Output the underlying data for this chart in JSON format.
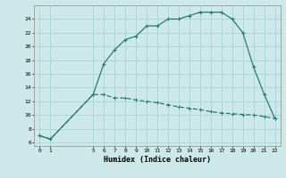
{
  "xlabel": "Humidex (Indice chaleur)",
  "background_color": "#cce8e8",
  "grid_color": "#aad4d4",
  "line_color": "#2d7a6e",
  "line1_x": [
    0,
    1,
    5,
    6,
    7,
    8,
    9,
    10,
    11,
    12,
    13,
    14,
    15,
    16,
    17,
    18,
    19,
    20,
    21,
    22
  ],
  "line1_y": [
    7.0,
    6.5,
    13.0,
    17.5,
    19.5,
    21.0,
    21.5,
    23.0,
    23.0,
    24.0,
    24.0,
    24.5,
    25.0,
    25.0,
    25.0,
    24.0,
    22.0,
    17.0,
    13.0,
    9.5
  ],
  "line2_x": [
    0,
    1,
    5,
    6,
    7,
    8,
    9,
    10,
    11,
    12,
    13,
    14,
    15,
    16,
    17,
    18,
    19,
    20,
    21,
    22
  ],
  "line2_y": [
    7.0,
    6.5,
    13.0,
    13.0,
    12.5,
    12.5,
    12.2,
    12.0,
    11.8,
    11.5,
    11.2,
    11.0,
    10.8,
    10.5,
    10.3,
    10.2,
    10.1,
    10.0,
    9.8,
    9.5
  ],
  "xlim": [
    -0.5,
    22.5
  ],
  "ylim": [
    5.5,
    26.0
  ],
  "yticks": [
    6,
    8,
    10,
    12,
    14,
    16,
    18,
    20,
    22,
    24
  ],
  "xticks": [
    0,
    1,
    5,
    6,
    7,
    8,
    9,
    10,
    11,
    12,
    13,
    14,
    15,
    16,
    17,
    18,
    19,
    20,
    21,
    22
  ]
}
